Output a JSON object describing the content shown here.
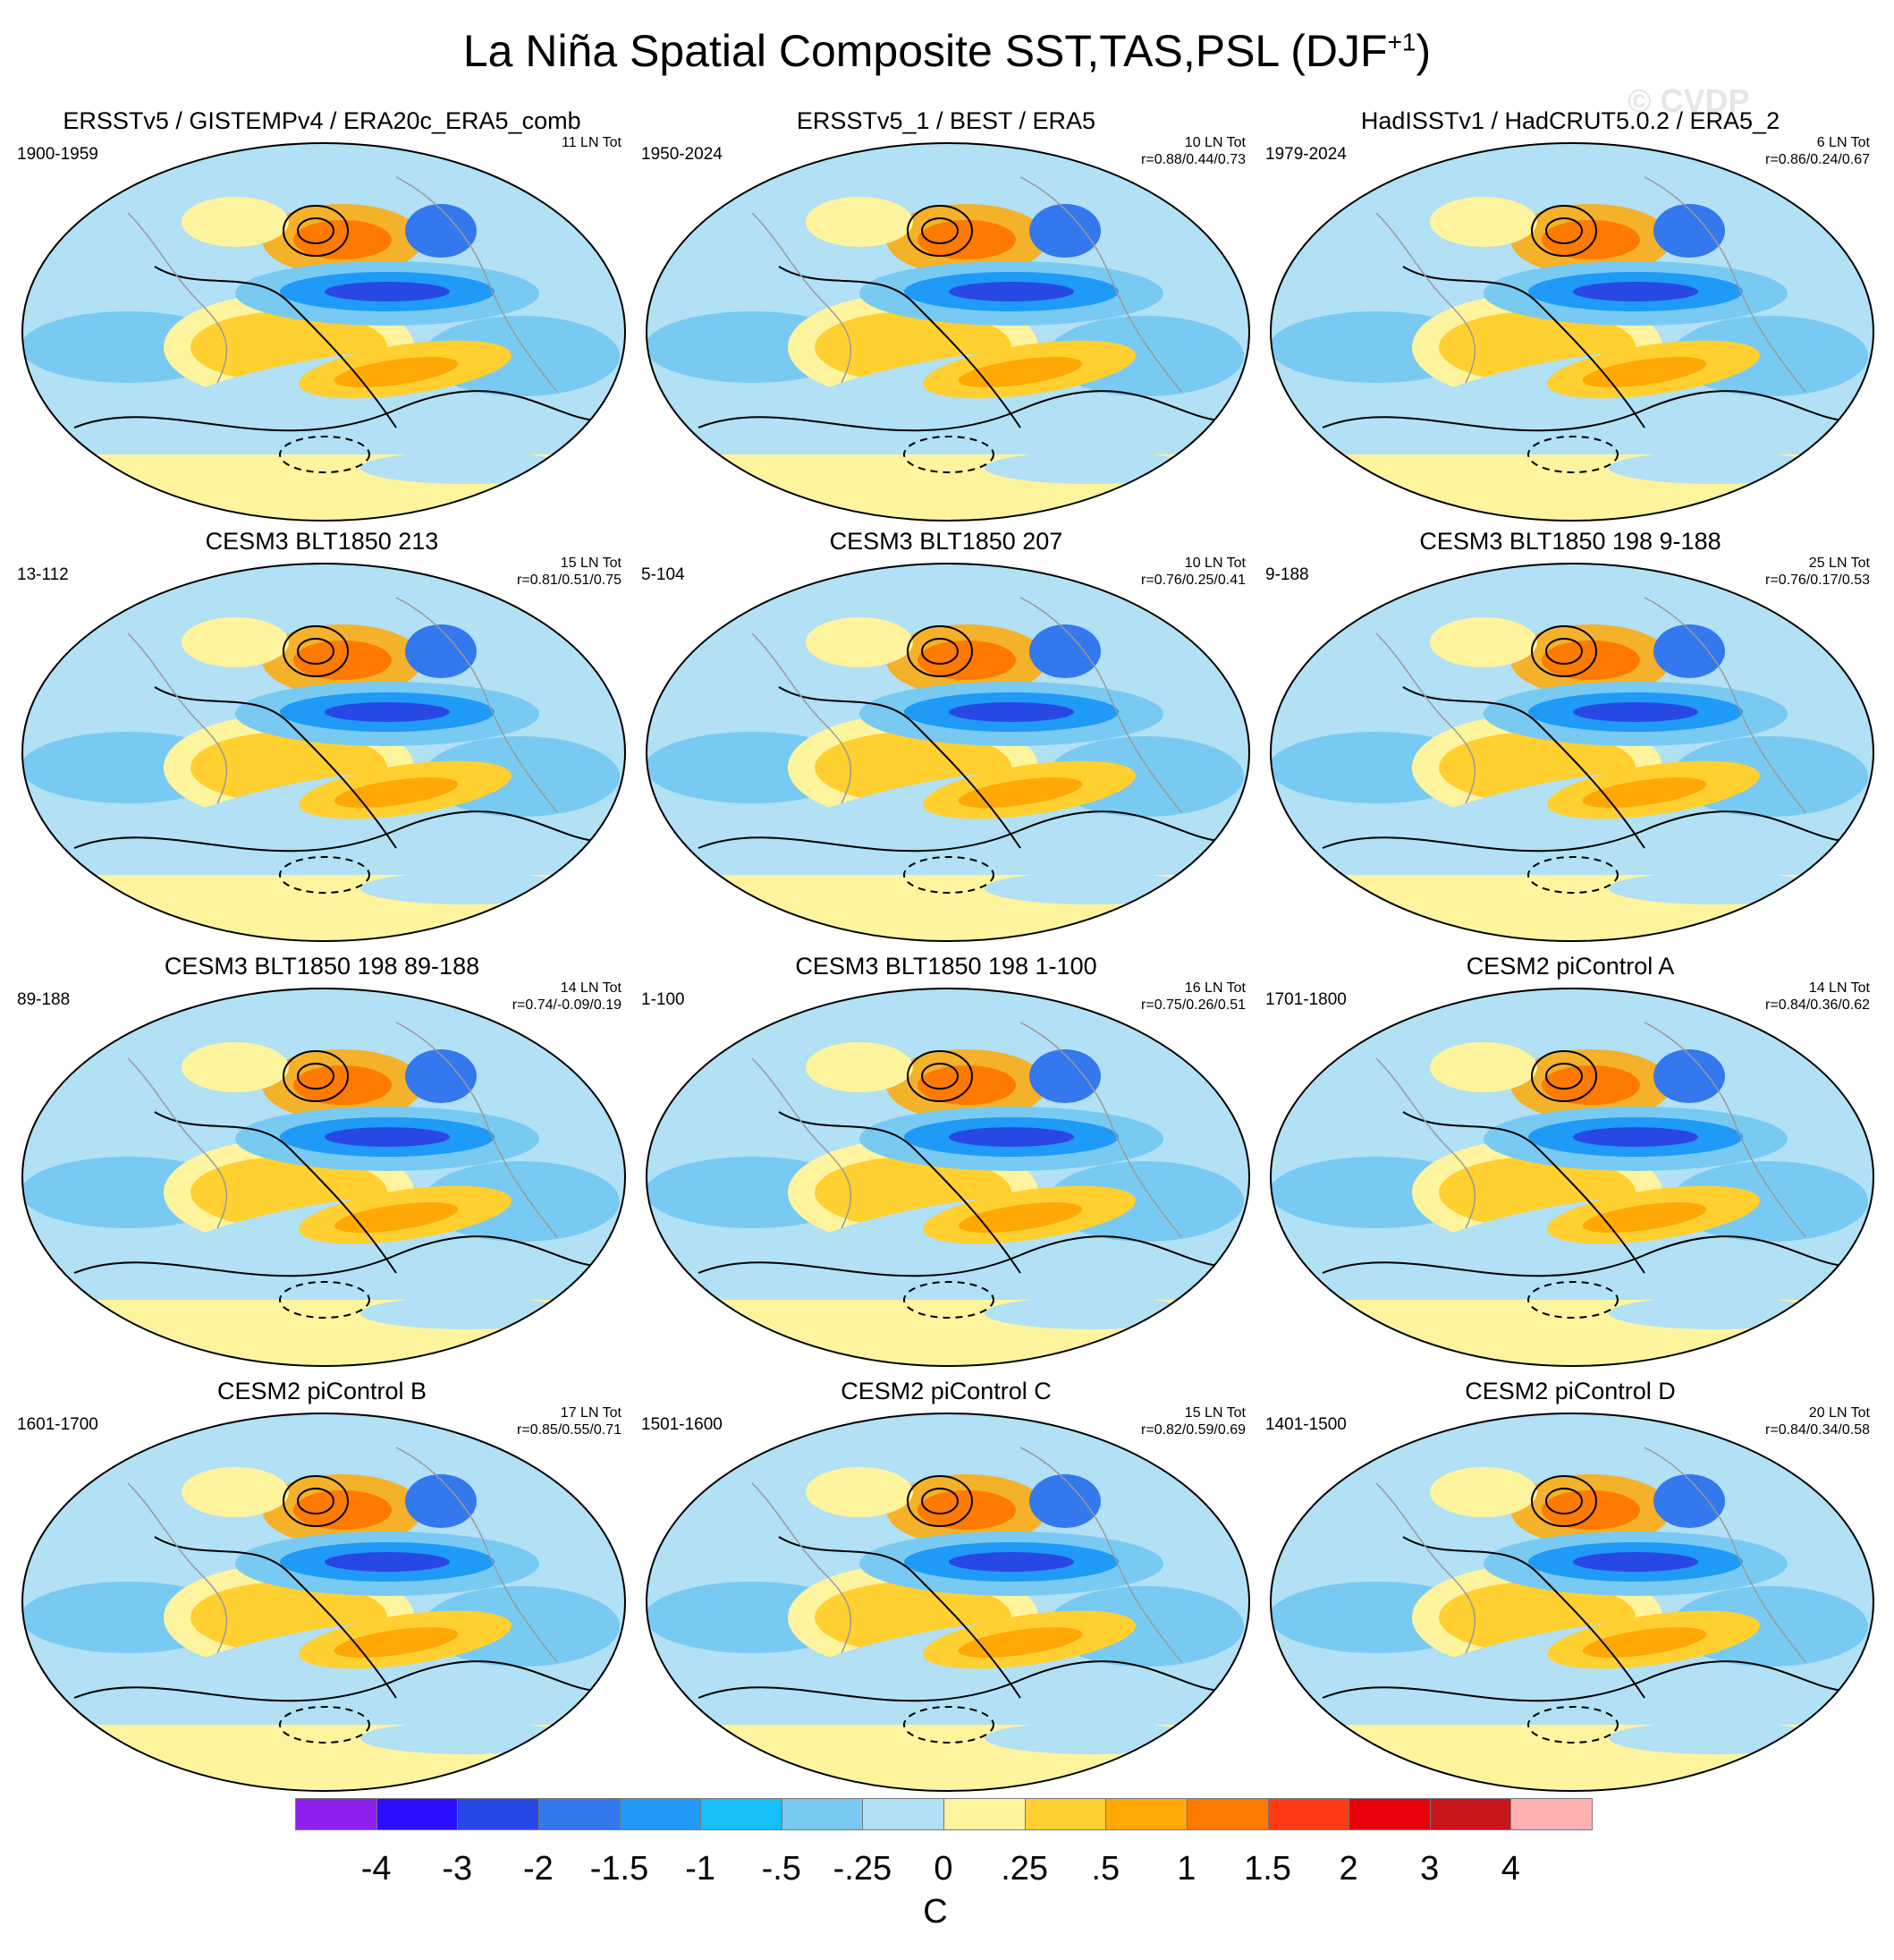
{
  "figure": {
    "title_main": "La Niña Spatial Composite SST,TAS,PSL (DJF",
    "title_sup": "+1",
    "title_tail": ")",
    "watermark": "© CVDP"
  },
  "panels": [
    {
      "title": "ERSSTv5 / GISTEMPv4 / ERA20c_ERA5_comb",
      "period": "1900-1959",
      "count": "11 LN Tot",
      "corr": ""
    },
    {
      "title": "ERSSTv5_1 / BEST / ERA5",
      "period": "1950-2024",
      "count": "10 LN Tot",
      "corr": "r=0.88/0.44/0.73"
    },
    {
      "title": "HadISSTv1 / HadCRUT5.0.2 / ERA5_2",
      "period": "1979-2024",
      "count": "6 LN Tot",
      "corr": "r=0.86/0.24/0.67"
    },
    {
      "title": "CESM3 BLT1850 213",
      "period": "13-112",
      "count": "15 LN Tot",
      "corr": "r=0.81/0.51/0.75"
    },
    {
      "title": "CESM3 BLT1850 207",
      "period": "5-104",
      "count": "10 LN Tot",
      "corr": "r=0.76/0.25/0.41"
    },
    {
      "title": "CESM3 BLT1850 198 9-188",
      "period": "9-188",
      "count": "25 LN Tot",
      "corr": "r=0.76/0.17/0.53"
    },
    {
      "title": "CESM3 BLT1850 198 89-188",
      "period": "89-188",
      "count": "14 LN Tot",
      "corr": "r=0.74/-0.09/0.19"
    },
    {
      "title": "CESM3 BLT1850 198 1-100",
      "period": "1-100",
      "count": "16 LN Tot",
      "corr": "r=0.75/0.26/0.51"
    },
    {
      "title": "CESM2 piControl A",
      "period": "1701-1800",
      "count": "14 LN Tot",
      "corr": "r=0.84/0.36/0.62"
    },
    {
      "title": "CESM2 piControl B",
      "period": "1601-1700",
      "count": "17 LN Tot",
      "corr": "r=0.85/0.55/0.71"
    },
    {
      "title": "CESM2 piControl C",
      "period": "1501-1600",
      "count": "15 LN Tot",
      "corr": "r=0.82/0.59/0.69"
    },
    {
      "title": "CESM2 piControl D",
      "period": "1401-1500",
      "count": "20 LN Tot",
      "corr": "r=0.84/0.34/0.58"
    }
  ],
  "colorbar": {
    "units": "C",
    "colors": [
      "#8f20f0",
      "#2a10ff",
      "#2848e6",
      "#3478ee",
      "#1f9af6",
      "#16bff8",
      "#78caf2",
      "#b2e0f4",
      "#fff49e",
      "#ffd030",
      "#ffa806",
      "#ff7a00",
      "#ff3a14",
      "#e6000a",
      "#c8161c",
      "#ffb0b0"
    ],
    "labels": [
      "-4",
      "-3",
      "-2",
      "-1.5",
      "-1",
      "-.5",
      "-.25",
      "0",
      ".25",
      ".5",
      "1",
      "1.5",
      "2",
      "3",
      "4"
    ]
  }
}
